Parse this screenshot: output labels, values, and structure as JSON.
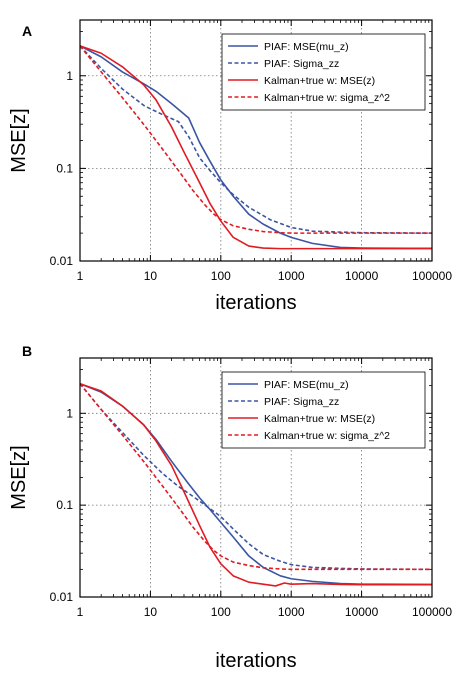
{
  "colors": {
    "blue": "#3b55a3",
    "red": "#e01b22",
    "grid": "#777777",
    "frame": "#000000"
  },
  "chart_data": [
    {
      "panel_label": "A",
      "type": "line",
      "x_scale": "log",
      "y_scale": "log",
      "xlim": [
        1,
        100000
      ],
      "ylim": [
        0.01,
        4
      ],
      "xticks": [
        "1",
        "10",
        "100",
        "1000",
        "10000",
        "100000"
      ],
      "yticks": [
        "0.01",
        "0.1",
        "1"
      ],
      "xlabel": "iterations",
      "ylabel": "MSE[z]",
      "grid": true,
      "legend_position": "top-right",
      "series": [
        {
          "name": "PIAF: MSE(mu_z)",
          "color": "#3b55a3",
          "dash": false,
          "x": [
            1,
            2,
            4,
            8,
            12,
            20,
            35,
            50,
            70,
            100,
            150,
            250,
            400,
            700,
            1000,
            2000,
            5000,
            10000,
            50000,
            100000
          ],
          "y": [
            2.1,
            1.6,
            1.1,
            0.82,
            0.68,
            0.5,
            0.35,
            0.19,
            0.12,
            0.075,
            0.05,
            0.032,
            0.025,
            0.02,
            0.018,
            0.0155,
            0.014,
            0.0138,
            0.0137,
            0.0137
          ]
        },
        {
          "name": "PIAF: Sigma_zz",
          "color": "#3b55a3",
          "dash": true,
          "x": [
            1,
            2,
            4,
            8,
            10,
            15,
            25,
            35,
            50,
            70,
            100,
            150,
            250,
            500,
            1000,
            2000,
            5000,
            10000,
            100000
          ],
          "y": [
            2.1,
            1.2,
            0.72,
            0.48,
            0.44,
            0.38,
            0.32,
            0.22,
            0.13,
            0.095,
            0.07,
            0.052,
            0.038,
            0.028,
            0.023,
            0.021,
            0.0205,
            0.0202,
            0.02
          ]
        },
        {
          "name": "Kalman+true w: MSE(z)",
          "color": "#e01b22",
          "dash": false,
          "x": [
            1,
            2,
            4,
            8,
            12,
            20,
            30,
            50,
            70,
            100,
            150,
            250,
            400,
            700,
            1000,
            5000,
            10000,
            100000
          ],
          "y": [
            2.1,
            1.75,
            1.25,
            0.8,
            0.55,
            0.28,
            0.15,
            0.07,
            0.042,
            0.027,
            0.018,
            0.0145,
            0.0138,
            0.0136,
            0.0136,
            0.0136,
            0.0136,
            0.0136
          ]
        },
        {
          "name": "Kalman+true w: sigma_z^2",
          "color": "#e01b22",
          "dash": true,
          "x": [
            1,
            2,
            4,
            8,
            15,
            25,
            40,
            60,
            80,
            100,
            150,
            250,
            400,
            700,
            1000,
            10000,
            100000
          ],
          "y": [
            2.1,
            1.1,
            0.58,
            0.3,
            0.16,
            0.095,
            0.058,
            0.04,
            0.032,
            0.028,
            0.024,
            0.022,
            0.0208,
            0.0202,
            0.02,
            0.02,
            0.02
          ]
        }
      ]
    },
    {
      "panel_label": "B",
      "type": "line",
      "x_scale": "log",
      "y_scale": "log",
      "xlim": [
        1,
        100000
      ],
      "ylim": [
        0.01,
        4
      ],
      "xticks": [
        "1",
        "10",
        "100",
        "1000",
        "10000",
        "100000"
      ],
      "yticks": [
        "0.01",
        "0.1",
        "1"
      ],
      "xlabel": "iterations",
      "ylabel": "MSE[z]",
      "grid": true,
      "legend_position": "top-right",
      "series": [
        {
          "name": "PIAF: MSE(mu_z)",
          "color": "#3b55a3",
          "dash": false,
          "x": [
            1,
            2,
            4,
            8,
            12,
            20,
            35,
            50,
            70,
            100,
            150,
            250,
            400,
            700,
            1000,
            2000,
            5000,
            10000,
            100000
          ],
          "y": [
            2.1,
            1.7,
            1.2,
            0.75,
            0.52,
            0.3,
            0.17,
            0.12,
            0.09,
            0.065,
            0.045,
            0.028,
            0.021,
            0.017,
            0.0158,
            0.0148,
            0.014,
            0.0138,
            0.0137
          ]
        },
        {
          "name": "PIAF: Sigma_zz",
          "color": "#3b55a3",
          "dash": true,
          "x": [
            1,
            2,
            4,
            8,
            15,
            25,
            40,
            60,
            100,
            150,
            250,
            400,
            700,
            1000,
            2000,
            5000,
            10000,
            100000
          ],
          "y": [
            2.1,
            1.1,
            0.62,
            0.35,
            0.22,
            0.16,
            0.125,
            0.1,
            0.075,
            0.055,
            0.038,
            0.029,
            0.0245,
            0.0225,
            0.021,
            0.0205,
            0.0202,
            0.02
          ]
        },
        {
          "name": "Kalman+true w: MSE(z)",
          "color": "#e01b22",
          "dash": false,
          "x": [
            1,
            2,
            4,
            8,
            12,
            20,
            30,
            50,
            70,
            100,
            150,
            250,
            400,
            600,
            800,
            1000,
            2000,
            5000,
            10000,
            100000
          ],
          "y": [
            2.1,
            1.75,
            1.2,
            0.75,
            0.5,
            0.27,
            0.14,
            0.06,
            0.035,
            0.023,
            0.017,
            0.0145,
            0.0138,
            0.0132,
            0.0142,
            0.0138,
            0.014,
            0.0137,
            0.0136,
            0.0136
          ]
        },
        {
          "name": "Kalman+true w: sigma_z^2",
          "color": "#e01b22",
          "dash": true,
          "x": [
            1,
            2,
            4,
            8,
            15,
            25,
            40,
            60,
            80,
            100,
            150,
            250,
            400,
            700,
            1000,
            10000,
            100000
          ],
          "y": [
            2.1,
            1.1,
            0.58,
            0.3,
            0.16,
            0.095,
            0.058,
            0.04,
            0.032,
            0.028,
            0.024,
            0.022,
            0.0208,
            0.0202,
            0.02,
            0.02,
            0.02
          ]
        }
      ]
    }
  ]
}
